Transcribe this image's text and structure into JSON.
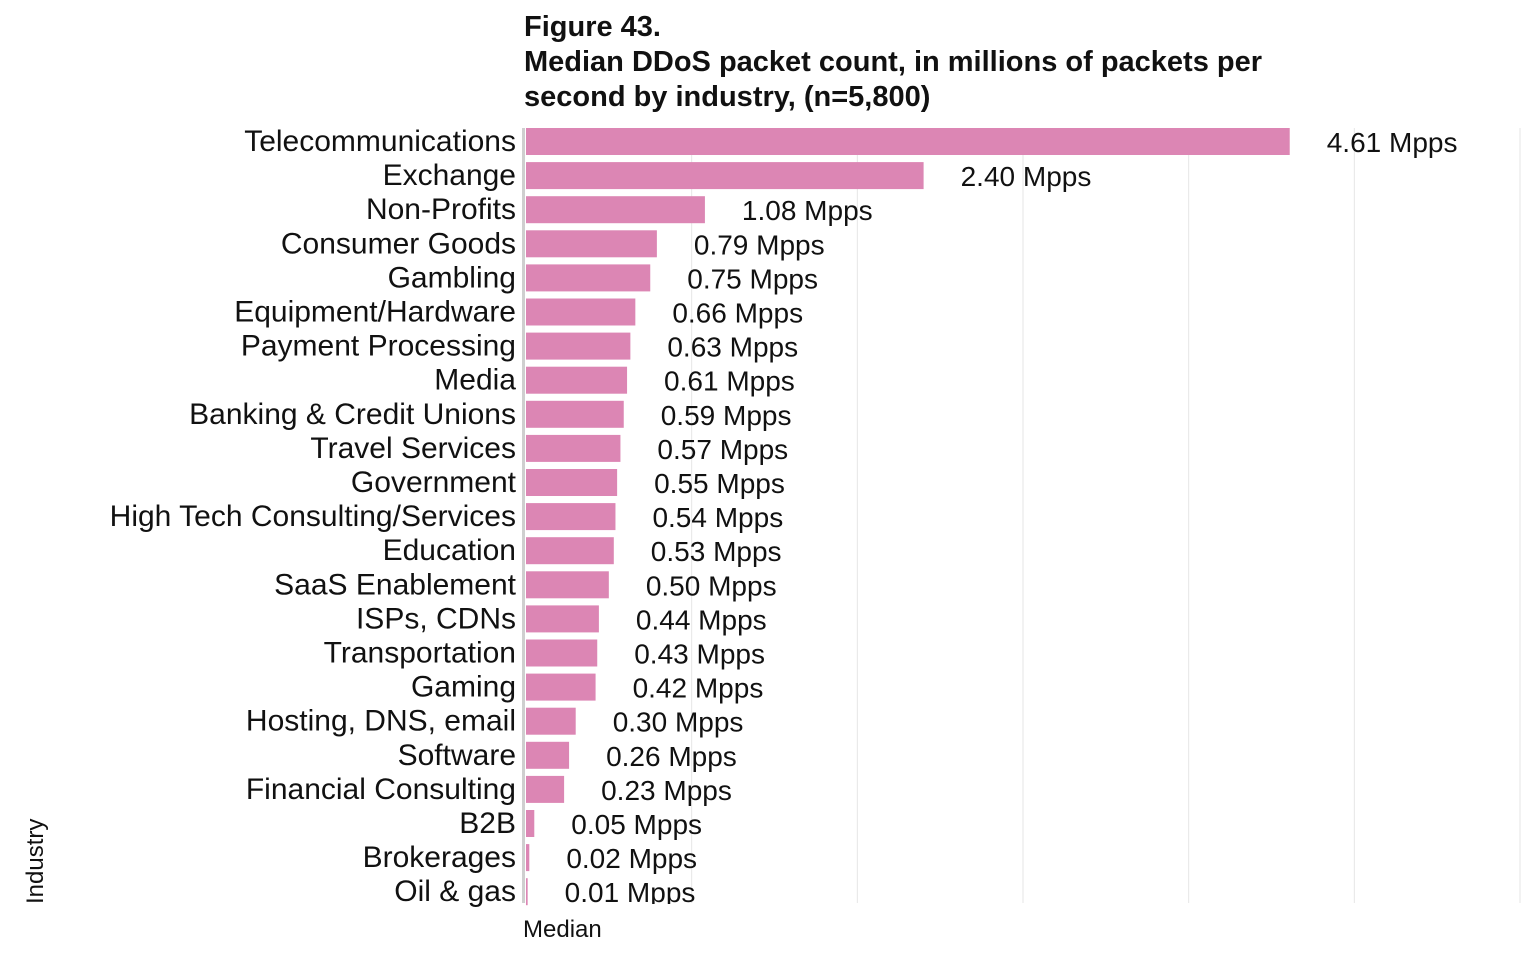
{
  "chart_data": {
    "type": "bar",
    "orientation": "horizontal",
    "title": "Figure 43.\n Median DDoS packet count, in millions of packets per second by industry, (n=5,800)",
    "xlabel": "Median",
    "ylabel": "Industry",
    "value_suffix": " Mpps",
    "xlim": [
      0,
      6.0
    ],
    "grid": true,
    "bar_color": "#dc86b4",
    "grid_color": "#e6e6e6",
    "categories": [
      "Telecommunications",
      "Exchange",
      "Non-Profits",
      "Consumer Goods",
      "Gambling",
      "Equipment/Hardware",
      "Payment Processing",
      "Media",
      "Banking & Credit Unions",
      "Travel Services",
      "Government",
      "High Tech Consulting/Services",
      "Education",
      "SaaS Enablement",
      "ISPs, CDNs",
      "Transportation",
      "Gaming",
      "Hosting, DNS, email",
      "Software",
      "Financial Consulting",
      "B2B",
      "Brokerages",
      "Oil & gas"
    ],
    "values": [
      4.61,
      2.4,
      1.08,
      0.79,
      0.75,
      0.66,
      0.63,
      0.61,
      0.59,
      0.57,
      0.55,
      0.54,
      0.53,
      0.5,
      0.44,
      0.43,
      0.42,
      0.3,
      0.26,
      0.23,
      0.05,
      0.02,
      0.01
    ],
    "value_labels": [
      "4.61 Mpps",
      "2.40 Mpps",
      "1.08 Mpps",
      "0.79 Mpps",
      "0.75 Mpps",
      "0.66 Mpps",
      "0.63 Mpps",
      "0.61 Mpps",
      "0.59 Mpps",
      "0.57 Mpps",
      "0.55 Mpps",
      "0.54 Mpps",
      "0.53 Mpps",
      "0.50 Mpps",
      "0.44 Mpps",
      "0.43 Mpps",
      "0.42 Mpps",
      "0.30 Mpps",
      "0.26 Mpps",
      "0.23 Mpps",
      "0.05 Mpps",
      "0.02 Mpps",
      "0.01 Mpps"
    ]
  }
}
